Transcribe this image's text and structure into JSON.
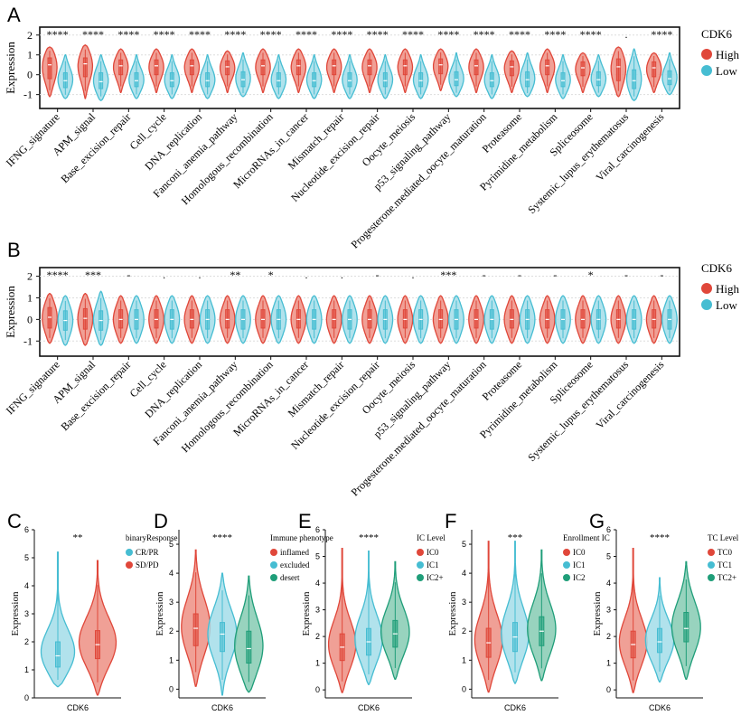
{
  "colors": {
    "high": "#e0473a",
    "low": "#46bdd2",
    "mid": "#1f9e79",
    "fill_high": "#ed8f84",
    "fill_low": "#a3dde9",
    "fill_mid": "#86cbb3",
    "axis": "#111111"
  },
  "panels": {
    "A": {
      "label": "A"
    },
    "B": {
      "label": "B"
    },
    "C": {
      "label": "C"
    },
    "D": {
      "label": "D"
    },
    "E": {
      "label": "E"
    },
    "F": {
      "label": "F"
    },
    "G": {
      "label": "G"
    }
  },
  "chart_data": [
    {
      "id": "A",
      "type": "violin",
      "ylabel": "Expression",
      "ylim": [
        -1.7,
        2.4
      ],
      "yticks": [
        -1,
        0,
        1,
        2
      ],
      "legend": {
        "title": "CDK6",
        "placement": "right",
        "entries": [
          "High",
          "Low"
        ]
      },
      "categories": [
        "IFNG_signature",
        "APM_signal",
        "Base_excision_repair",
        "Cell_cycle",
        "DNA_replication",
        "Fanconi_anemia_pathway",
        "Homologous_recombination",
        "MicroRNAs_in_cancer",
        "Mismatch_repair",
        "Nucleotide_excision_repair",
        "Oocyte_meiosis",
        "p53_signaling_pathway",
        "Progesterone.mediated_oocyte_maturation",
        "Proteasome",
        "Pyrimidine_metabolism",
        "Spliceosome",
        "Systemic_lupus_erythematosus",
        "Viral_carcinogenesis"
      ],
      "significance": [
        "****",
        "****",
        "****",
        "****",
        "****",
        "****",
        "****",
        "****",
        "****",
        "****",
        "****",
        "****",
        "****",
        "****",
        "****",
        "****",
        ".",
        "****"
      ],
      "series": [
        {
          "name": "High",
          "medians": [
            0.5,
            0.55,
            0.45,
            0.45,
            0.45,
            0.4,
            0.45,
            0.45,
            0.45,
            0.45,
            0.45,
            0.5,
            0.45,
            0.4,
            0.45,
            0.35,
            0.4,
            0.35
          ],
          "q1": [
            -0.2,
            -0.1,
            0.0,
            0.0,
            0.0,
            0.0,
            0.0,
            0.0,
            0.0,
            0.0,
            0.0,
            0.05,
            0.0,
            -0.05,
            0.0,
            -0.05,
            -0.3,
            -0.1
          ],
          "q3": [
            0.85,
            0.85,
            0.75,
            0.75,
            0.75,
            0.7,
            0.75,
            0.75,
            0.75,
            0.75,
            0.75,
            0.8,
            0.75,
            0.7,
            0.75,
            0.65,
            0.8,
            0.65
          ],
          "min": [
            -1.1,
            -1.2,
            -0.9,
            -0.9,
            -0.9,
            -0.9,
            -0.9,
            -0.9,
            -0.9,
            -0.9,
            -0.9,
            -0.8,
            -0.9,
            -0.9,
            -0.9,
            -0.9,
            -1.1,
            -0.9
          ],
          "max": [
            1.4,
            1.5,
            1.3,
            1.3,
            1.3,
            1.2,
            1.3,
            1.3,
            1.3,
            1.3,
            1.3,
            1.3,
            1.3,
            1.2,
            1.3,
            1.1,
            1.4,
            1.1
          ]
        },
        {
          "name": "Low",
          "medians": [
            -0.3,
            -0.35,
            -0.3,
            -0.3,
            -0.3,
            -0.25,
            -0.3,
            -0.3,
            -0.3,
            -0.3,
            -0.3,
            -0.25,
            -0.3,
            -0.25,
            -0.3,
            -0.25,
            -0.3,
            -0.2
          ],
          "q1": [
            -0.65,
            -0.7,
            -0.6,
            -0.6,
            -0.6,
            -0.6,
            -0.6,
            -0.6,
            -0.6,
            -0.6,
            -0.6,
            -0.55,
            -0.6,
            -0.6,
            -0.6,
            -0.55,
            -0.7,
            -0.5
          ],
          "q3": [
            0.1,
            0.1,
            0.1,
            0.1,
            0.1,
            0.15,
            0.1,
            0.1,
            0.1,
            0.1,
            0.1,
            0.15,
            0.1,
            0.15,
            0.1,
            0.15,
            0.25,
            0.2
          ],
          "min": [
            -1.2,
            -1.3,
            -1.2,
            -1.2,
            -1.2,
            -1.1,
            -1.2,
            -1.2,
            -1.2,
            -1.2,
            -1.2,
            -1.1,
            -1.2,
            -1.1,
            -1.2,
            -1.1,
            -1.3,
            -1.0
          ],
          "max": [
            1.0,
            1.0,
            1.0,
            1.0,
            1.0,
            1.1,
            1.0,
            1.0,
            1.0,
            1.0,
            1.0,
            1.1,
            1.0,
            1.1,
            1.0,
            1.0,
            1.3,
            1.1
          ]
        }
      ]
    },
    {
      "id": "B",
      "type": "violin",
      "ylabel": "Expression",
      "ylim": [
        -1.7,
        2.4
      ],
      "yticks": [
        -1,
        0,
        1,
        2
      ],
      "legend": {
        "title": "CDK6",
        "placement": "right",
        "entries": [
          "High",
          "Low"
        ]
      },
      "categories": [
        "IFNG_signature",
        "APM_signal",
        "Base_excision_repair",
        "Cell_cycle",
        "DNA_replication",
        "Fanconi_anemia_pathway",
        "Homologous_recombination",
        "MicroRNAs_in_cancer",
        "Mismatch_repair",
        "Nucleotide_excision_repair",
        "Oocyte_meiosis",
        "p53_signaling_pathway",
        "Progesterone.mediated_oocyte_maturation",
        "Proteasome",
        "Pyrimidine_metabolism",
        "Spliceosome",
        "Systemic_lupus_erythematosus",
        "Viral_carcinogenesis"
      ],
      "significance": [
        "****",
        "***",
        "-",
        ".",
        ".",
        "**",
        "*",
        ".",
        ".",
        "-",
        ".",
        "***",
        "-",
        "-",
        "-",
        "*",
        "-",
        "-"
      ],
      "series": [
        {
          "name": "High",
          "medians": [
            0.1,
            0.05,
            0.0,
            0.0,
            0.0,
            0.0,
            0.0,
            0.0,
            0.0,
            0.0,
            0.0,
            0.0,
            0.0,
            0.0,
            0.0,
            0.0,
            0.0,
            0.0
          ],
          "q1": [
            -0.4,
            -0.45,
            -0.4,
            -0.4,
            -0.4,
            -0.4,
            -0.4,
            -0.4,
            -0.4,
            -0.4,
            -0.4,
            -0.4,
            -0.4,
            -0.4,
            -0.4,
            -0.4,
            -0.4,
            -0.4
          ],
          "q3": [
            0.55,
            0.5,
            0.45,
            0.45,
            0.45,
            0.45,
            0.45,
            0.45,
            0.45,
            0.45,
            0.45,
            0.45,
            0.45,
            0.45,
            0.45,
            0.45,
            0.45,
            0.45
          ],
          "min": [
            -1.1,
            -1.2,
            -1.1,
            -1.1,
            -1.1,
            -1.1,
            -1.1,
            -1.1,
            -1.1,
            -1.1,
            -1.1,
            -1.1,
            -1.1,
            -1.1,
            -1.1,
            -1.1,
            -1.1,
            -1.1
          ],
          "max": [
            1.2,
            1.2,
            1.1,
            1.1,
            1.1,
            1.1,
            1.1,
            1.1,
            1.1,
            1.1,
            1.1,
            1.1,
            1.1,
            1.1,
            1.1,
            1.1,
            1.1,
            1.1
          ]
        },
        {
          "name": "Low",
          "medians": [
            -0.05,
            -0.05,
            0.0,
            0.0,
            0.0,
            0.0,
            0.0,
            0.0,
            0.0,
            0.0,
            0.0,
            0.0,
            0.0,
            0.0,
            0.0,
            0.0,
            0.0,
            0.0
          ],
          "q1": [
            -0.5,
            -0.5,
            -0.45,
            -0.45,
            -0.45,
            -0.45,
            -0.45,
            -0.45,
            -0.45,
            -0.45,
            -0.45,
            -0.45,
            -0.45,
            -0.45,
            -0.45,
            -0.45,
            -0.45,
            -0.45
          ],
          "q3": [
            0.4,
            0.4,
            0.45,
            0.45,
            0.45,
            0.45,
            0.45,
            0.45,
            0.45,
            0.45,
            0.45,
            0.45,
            0.45,
            0.45,
            0.45,
            0.45,
            0.45,
            0.45
          ],
          "min": [
            -1.2,
            -1.2,
            -1.1,
            -1.1,
            -1.1,
            -1.1,
            -1.1,
            -1.1,
            -1.1,
            -1.1,
            -1.1,
            -1.1,
            -1.1,
            -1.1,
            -1.1,
            -1.1,
            -1.1,
            -1.1
          ],
          "max": [
            1.1,
            1.3,
            1.1,
            1.1,
            1.1,
            1.1,
            1.1,
            1.1,
            1.1,
            1.1,
            1.1,
            1.1,
            1.1,
            1.1,
            1.1,
            1.1,
            1.1,
            1.1
          ]
        }
      ]
    },
    {
      "id": "C",
      "type": "violin",
      "xlabel": "CDK6",
      "ylabel": "Expression",
      "ylim": [
        0,
        6
      ],
      "yticks": [
        0,
        1,
        2,
        3,
        4,
        5,
        6
      ],
      "significance": "**",
      "legend": {
        "title": "binaryResponse",
        "placement": "right",
        "entries": [
          "CR/PR",
          "SD/PD"
        ]
      },
      "series": [
        {
          "name": "CR/PR",
          "color": "low",
          "median": 1.5,
          "q1": 1.1,
          "q3": 2.0,
          "min": 0.4,
          "max": 5.2
        },
        {
          "name": "SD/PD",
          "color": "high",
          "median": 1.9,
          "q1": 1.4,
          "q3": 2.4,
          "min": 0.1,
          "max": 4.9
        }
      ]
    },
    {
      "id": "D",
      "type": "violin",
      "xlabel": "CDK6",
      "ylabel": "Expression",
      "ylim": [
        -0.3,
        5.5
      ],
      "yticks": [
        0,
        1,
        2,
        3,
        4,
        5
      ],
      "significance": "****",
      "legend": {
        "title": "Immune phenotype",
        "placement": "right",
        "entries": [
          "inflamed",
          "excluded",
          "desert"
        ]
      },
      "series": [
        {
          "name": "inflamed",
          "color": "high",
          "median": 2.1,
          "q1": 1.5,
          "q3": 2.6,
          "min": 0.1,
          "max": 4.8
        },
        {
          "name": "excluded",
          "color": "low",
          "median": 1.9,
          "q1": 1.3,
          "q3": 2.3,
          "min": -0.2,
          "max": 4.0
        },
        {
          "name": "desert",
          "color": "mid",
          "median": 1.4,
          "q1": 0.9,
          "q3": 2.0,
          "min": -0.1,
          "max": 3.9
        }
      ]
    },
    {
      "id": "E",
      "type": "violin",
      "xlabel": "CDK6",
      "ylabel": "Expression",
      "ylim": [
        -0.3,
        6
      ],
      "yticks": [
        0,
        1,
        2,
        3,
        4,
        5,
        6
      ],
      "significance": "****",
      "legend": {
        "title": "IC Level",
        "placement": "right",
        "entries": [
          "IC0",
          "IC1",
          "IC2+"
        ]
      },
      "series": [
        {
          "name": "IC0",
          "color": "high",
          "median": 1.6,
          "q1": 1.1,
          "q3": 2.1,
          "min": -0.1,
          "max": 5.3
        },
        {
          "name": "IC1",
          "color": "low",
          "median": 1.8,
          "q1": 1.3,
          "q3": 2.3,
          "min": 0.2,
          "max": 5.2
        },
        {
          "name": "IC2+",
          "color": "mid",
          "median": 2.1,
          "q1": 1.6,
          "q3": 2.6,
          "min": 0.4,
          "max": 4.8
        }
      ]
    },
    {
      "id": "F",
      "type": "violin",
      "xlabel": "CDK6",
      "ylabel": "Expression",
      "ylim": [
        -0.3,
        5.5
      ],
      "yticks": [
        0,
        1,
        2,
        3,
        4,
        5
      ],
      "significance": "***",
      "legend": {
        "title": "Enrollment IC",
        "placement": "right",
        "entries": [
          "IC0",
          "IC1",
          "IC2"
        ]
      },
      "series": [
        {
          "name": "IC0",
          "color": "high",
          "median": 1.6,
          "q1": 1.1,
          "q3": 2.1,
          "min": -0.1,
          "max": 5.1
        },
        {
          "name": "IC1",
          "color": "low",
          "median": 1.8,
          "q1": 1.3,
          "q3": 2.3,
          "min": 0.2,
          "max": 5.1
        },
        {
          "name": "IC2",
          "color": "mid",
          "median": 2.0,
          "q1": 1.5,
          "q3": 2.5,
          "min": 0.3,
          "max": 4.8
        }
      ]
    },
    {
      "id": "G",
      "type": "violin",
      "xlabel": "CDK6",
      "ylabel": "Expression",
      "ylim": [
        -0.3,
        6
      ],
      "yticks": [
        0,
        1,
        2,
        3,
        4,
        5,
        6
      ],
      "significance": "****",
      "legend": {
        "title": "TC Level",
        "placement": "right",
        "entries": [
          "TC0",
          "TC1",
          "TC2+"
        ]
      },
      "series": [
        {
          "name": "TC0",
          "color": "high",
          "median": 1.7,
          "q1": 1.2,
          "q3": 2.2,
          "min": -0.1,
          "max": 5.3
        },
        {
          "name": "TC1",
          "color": "low",
          "median": 1.8,
          "q1": 1.4,
          "q3": 2.3,
          "min": 0.3,
          "max": 4.2
        },
        {
          "name": "TC2+",
          "color": "mid",
          "median": 2.3,
          "q1": 1.8,
          "q3": 2.9,
          "min": 0.4,
          "max": 4.8
        }
      ]
    }
  ]
}
